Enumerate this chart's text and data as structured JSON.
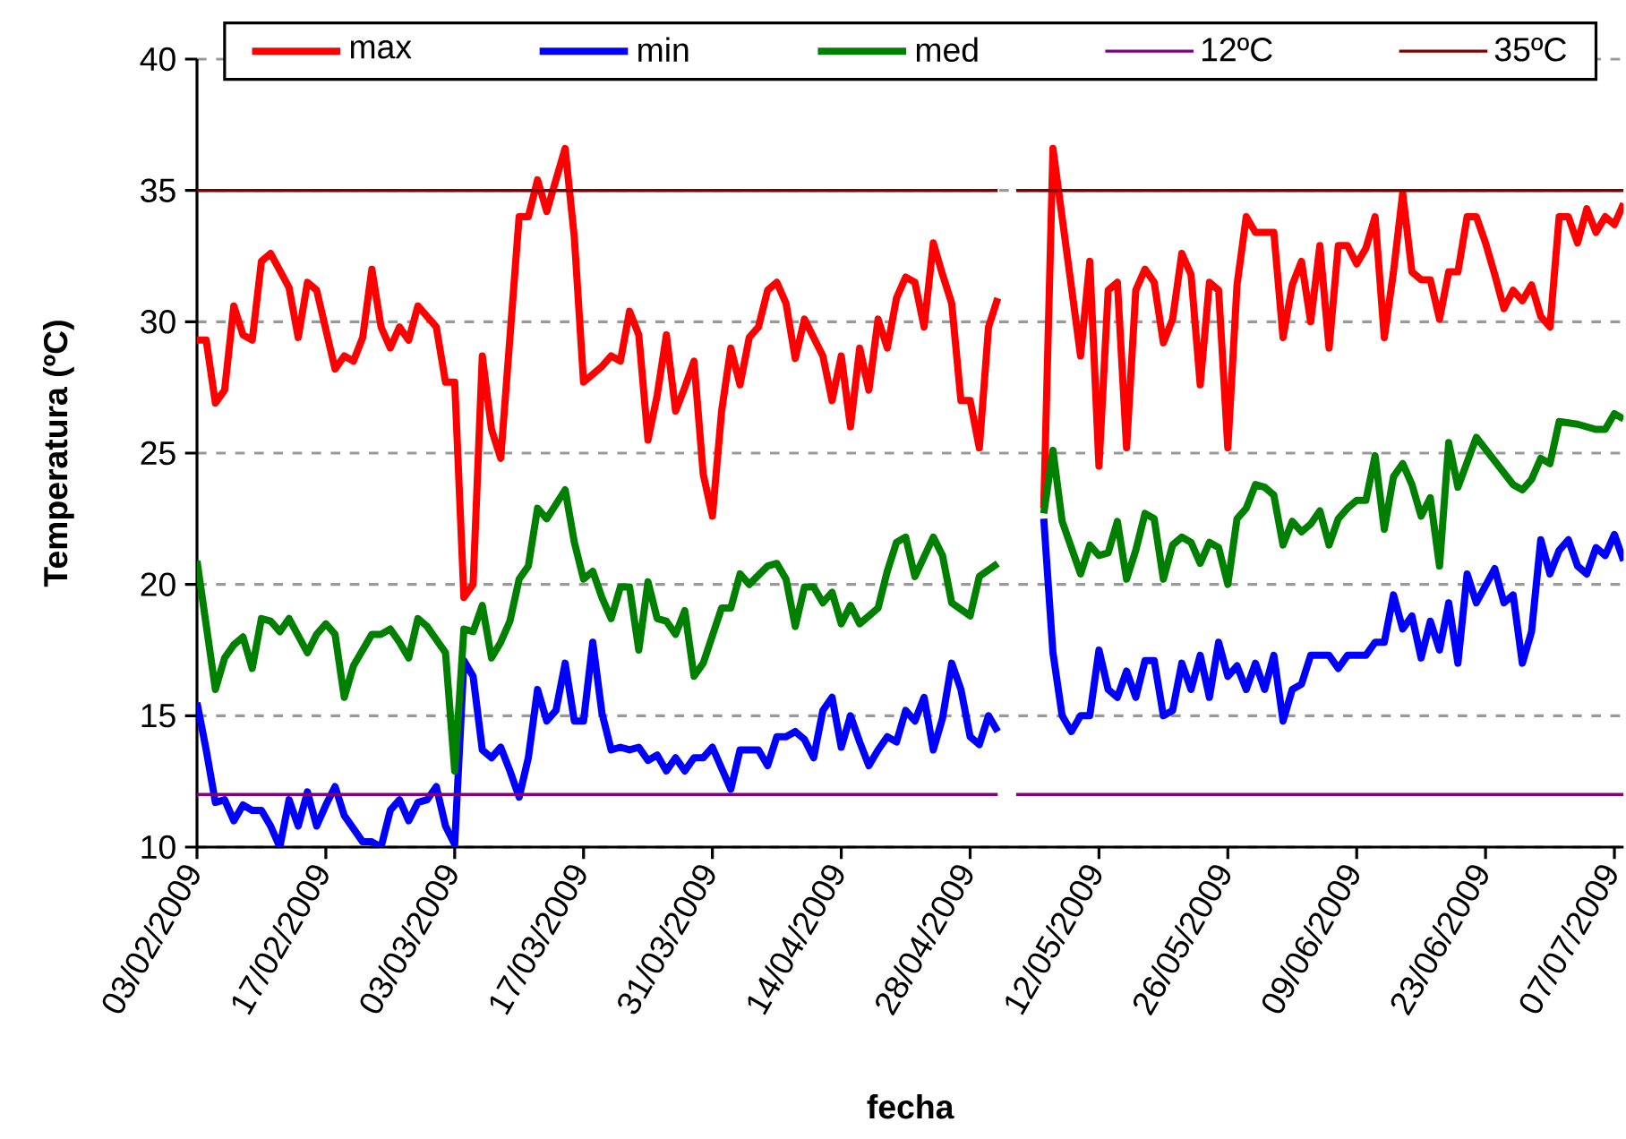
{
  "chart_data": {
    "type": "line",
    "xlabel": "fecha",
    "ylabel": "Temperatura (ºC)",
    "xlim": [
      "2009-02-03",
      "2009-07-08"
    ],
    "xticks": [
      {
        "value": "2009-02-03",
        "label": "03/02/2009"
      },
      {
        "value": "2009-02-17",
        "label": "17/02/2009"
      },
      {
        "value": "2009-03-03",
        "label": "03/03/2009"
      },
      {
        "value": "2009-03-17",
        "label": "17/03/2009"
      },
      {
        "value": "2009-03-31",
        "label": "31/03/2009"
      },
      {
        "value": "2009-04-14",
        "label": "14/04/2009"
      },
      {
        "value": "2009-04-28",
        "label": "28/04/2009"
      },
      {
        "value": "2009-05-12",
        "label": "12/05/2009"
      },
      {
        "value": "2009-05-26",
        "label": "26/05/2009"
      },
      {
        "value": "2009-06-09",
        "label": "09/06/2009"
      },
      {
        "value": "2009-06-23",
        "label": "23/06/2009"
      },
      {
        "value": "2009-07-07",
        "label": "07/07/2009"
      }
    ],
    "ylim": [
      10,
      40
    ],
    "yticks": [
      10,
      15,
      20,
      25,
      30,
      35,
      40
    ],
    "grid": "y",
    "legend": "top",
    "marker": "none",
    "line_style": "solid",
    "series": [
      {
        "name": "max",
        "color": "#ff0000",
        "x": [
          "2009-02-03",
          "2009-02-04",
          "2009-02-05",
          "2009-02-06",
          "2009-02-07",
          "2009-02-08",
          "2009-02-09",
          "2009-02-10",
          "2009-02-11",
          "2009-02-13",
          "2009-02-14",
          "2009-02-15",
          "2009-02-16",
          "2009-02-18",
          "2009-02-19",
          "2009-02-20",
          "2009-02-21",
          "2009-02-22",
          "2009-02-23",
          "2009-02-24",
          "2009-02-25",
          "2009-02-26",
          "2009-02-27",
          "2009-02-28",
          "2009-03-01",
          "2009-03-02",
          "2009-03-03",
          "2009-03-04",
          "2009-03-05",
          "2009-03-06",
          "2009-03-07",
          "2009-03-08",
          "2009-03-10",
          "2009-03-11",
          "2009-03-12",
          "2009-03-13",
          "2009-03-14",
          "2009-03-15",
          "2009-03-16",
          "2009-03-17",
          "2009-03-19",
          "2009-03-20",
          "2009-03-21",
          "2009-03-22",
          "2009-03-23",
          "2009-03-24",
          "2009-03-25",
          "2009-03-26",
          "2009-03-27",
          "2009-03-28",
          "2009-03-29",
          "2009-03-30",
          "2009-03-31",
          "2009-04-01",
          "2009-04-02",
          "2009-04-03",
          "2009-04-04",
          "2009-04-05",
          "2009-04-06",
          "2009-04-07",
          "2009-04-08",
          "2009-04-09",
          "2009-04-10",
          "2009-04-11",
          "2009-04-12",
          "2009-04-13",
          "2009-04-14",
          "2009-04-15",
          "2009-04-16",
          "2009-04-17",
          "2009-04-18",
          "2009-04-19",
          "2009-04-20",
          "2009-04-21",
          "2009-04-22",
          "2009-04-23",
          "2009-04-24",
          "2009-04-25",
          "2009-04-26",
          "2009-04-27",
          "2009-04-28",
          "2009-04-29",
          "2009-04-30",
          "2009-05-01",
          "2009-05-04",
          "2009-05-06",
          "2009-05-07",
          "2009-05-10",
          "2009-05-11",
          "2009-05-12",
          "2009-05-13",
          "2009-05-14",
          "2009-05-15",
          "2009-05-16",
          "2009-05-17",
          "2009-05-18",
          "2009-05-19",
          "2009-05-20",
          "2009-05-21",
          "2009-05-22",
          "2009-05-23",
          "2009-05-24",
          "2009-05-25",
          "2009-05-26",
          "2009-05-27",
          "2009-05-28",
          "2009-05-29",
          "2009-05-31",
          "2009-06-01",
          "2009-06-02",
          "2009-06-03",
          "2009-06-04",
          "2009-06-05",
          "2009-06-06",
          "2009-06-07",
          "2009-06-08",
          "2009-06-09",
          "2009-06-10",
          "2009-06-11",
          "2009-06-12",
          "2009-06-13",
          "2009-06-14",
          "2009-06-15",
          "2009-06-16",
          "2009-06-17",
          "2009-06-18",
          "2009-06-19",
          "2009-06-20",
          "2009-06-21",
          "2009-06-22",
          "2009-06-23",
          "2009-06-24",
          "2009-06-25",
          "2009-06-26",
          "2009-06-27",
          "2009-06-28",
          "2009-06-29",
          "2009-06-30",
          "2009-07-01",
          "2009-07-02",
          "2009-07-03",
          "2009-07-04",
          "2009-07-05",
          "2009-07-06",
          "2009-07-07",
          "2009-07-08"
        ],
        "values": [
          29.3,
          29.3,
          26.9,
          27.4,
          30.6,
          29.5,
          29.3,
          32.3,
          32.6,
          31.3,
          29.4,
          31.5,
          31.2,
          28.2,
          28.7,
          28.5,
          29.4,
          32.0,
          29.8,
          29.0,
          29.8,
          29.3,
          30.6,
          30.2,
          29.8,
          27.7,
          27.7,
          19.5,
          20.0,
          28.7,
          25.9,
          24.8,
          34.0,
          34.0,
          35.4,
          34.2,
          35.4,
          36.6,
          33.2,
          27.7,
          28.3,
          28.7,
          28.5,
          30.4,
          29.5,
          25.5,
          27.2,
          29.5,
          26.6,
          27.5,
          28.5,
          24.2,
          22.6,
          26.6,
          29.0,
          27.6,
          29.4,
          29.8,
          31.2,
          31.5,
          30.7,
          28.6,
          30.1,
          29.4,
          28.7,
          27.0,
          28.7,
          26.0,
          29.0,
          27.4,
          30.1,
          29.0,
          30.9,
          31.7,
          31.5,
          29.8,
          33.0,
          31.8,
          30.7,
          27.0,
          27.0,
          25.2,
          29.8,
          30.9,
          null,
          22.9,
          36.6,
          28.7,
          32.3,
          24.5,
          31.2,
          31.5,
          25.2,
          31.2,
          32.0,
          31.5,
          29.2,
          30.1,
          32.6,
          31.8,
          27.6,
          31.5,
          31.2,
          25.2,
          31.4,
          34.0,
          33.4,
          33.4,
          29.4,
          31.4,
          32.3,
          30.0,
          32.9,
          29.0,
          32.9,
          32.9,
          32.2,
          32.8,
          34.0,
          29.4,
          31.9,
          34.9,
          31.9,
          31.6,
          31.6,
          30.1,
          31.9,
          31.9,
          34.0,
          34.0,
          33.0,
          31.8,
          30.5,
          31.2,
          30.8,
          31.4,
          30.2,
          29.8,
          34.0,
          34.0,
          33.0,
          34.3,
          33.4,
          34.0,
          33.7,
          34.5
        ]
      },
      {
        "name": "min",
        "color": "#0000ff",
        "x": [
          "2009-02-03",
          "2009-02-04",
          "2009-02-05",
          "2009-02-06",
          "2009-02-07",
          "2009-02-08",
          "2009-02-09",
          "2009-02-10",
          "2009-02-11",
          "2009-02-12",
          "2009-02-13",
          "2009-02-14",
          "2009-02-15",
          "2009-02-16",
          "2009-02-17",
          "2009-02-18",
          "2009-02-19",
          "2009-02-20",
          "2009-02-21",
          "2009-02-22",
          "2009-02-23",
          "2009-02-24",
          "2009-02-25",
          "2009-02-26",
          "2009-02-27",
          "2009-02-28",
          "2009-03-01",
          "2009-03-02",
          "2009-03-03",
          "2009-03-04",
          "2009-03-05",
          "2009-03-06",
          "2009-03-07",
          "2009-03-08",
          "2009-03-09",
          "2009-03-10",
          "2009-03-11",
          "2009-03-12",
          "2009-03-13",
          "2009-03-14",
          "2009-03-15",
          "2009-03-16",
          "2009-03-17",
          "2009-03-18",
          "2009-03-19",
          "2009-03-20",
          "2009-03-21",
          "2009-03-22",
          "2009-03-23",
          "2009-03-24",
          "2009-03-25",
          "2009-03-26",
          "2009-03-27",
          "2009-03-28",
          "2009-03-29",
          "2009-03-30",
          "2009-03-31",
          "2009-04-01",
          "2009-04-02",
          "2009-04-03",
          "2009-04-04",
          "2009-04-05",
          "2009-04-06",
          "2009-04-07",
          "2009-04-08",
          "2009-04-09",
          "2009-04-10",
          "2009-04-11",
          "2009-04-12",
          "2009-04-13",
          "2009-04-14",
          "2009-04-15",
          "2009-04-16",
          "2009-04-17",
          "2009-04-18",
          "2009-04-19",
          "2009-04-20",
          "2009-04-21",
          "2009-04-22",
          "2009-04-23",
          "2009-04-24",
          "2009-04-25",
          "2009-04-26",
          "2009-04-27",
          "2009-04-28",
          "2009-04-29",
          "2009-04-30",
          "2009-05-01",
          "2009-05-04",
          "2009-05-06",
          "2009-05-07",
          "2009-05-08",
          "2009-05-09",
          "2009-05-10",
          "2009-05-11",
          "2009-05-12",
          "2009-05-13",
          "2009-05-14",
          "2009-05-15",
          "2009-05-16",
          "2009-05-17",
          "2009-05-18",
          "2009-05-19",
          "2009-05-20",
          "2009-05-21",
          "2009-05-22",
          "2009-05-23",
          "2009-05-24",
          "2009-05-25",
          "2009-05-26",
          "2009-05-27",
          "2009-05-28",
          "2009-05-29",
          "2009-05-30",
          "2009-05-31",
          "2009-06-01",
          "2009-06-02",
          "2009-06-03",
          "2009-06-04",
          "2009-06-06",
          "2009-06-07",
          "2009-06-08",
          "2009-06-10",
          "2009-06-11",
          "2009-06-12",
          "2009-06-13",
          "2009-06-14",
          "2009-06-15",
          "2009-06-16",
          "2009-06-17",
          "2009-06-18",
          "2009-06-19",
          "2009-06-20",
          "2009-06-21",
          "2009-06-22",
          "2009-06-24",
          "2009-06-25",
          "2009-06-26",
          "2009-06-27",
          "2009-06-28",
          "2009-06-29",
          "2009-06-30",
          "2009-07-01",
          "2009-07-02",
          "2009-07-03",
          "2009-07-04",
          "2009-07-05",
          "2009-07-06",
          "2009-07-07",
          "2009-07-08"
        ],
        "values": [
          15.5,
          13.7,
          11.7,
          11.8,
          11.0,
          11.6,
          11.4,
          11.4,
          10.8,
          10.0,
          11.8,
          10.8,
          12.1,
          10.8,
          11.6,
          12.3,
          11.2,
          10.7,
          10.2,
          10.2,
          10.0,
          11.4,
          11.8,
          11.0,
          11.7,
          11.8,
          12.3,
          10.8,
          10.1,
          17.1,
          16.5,
          13.7,
          13.4,
          13.8,
          12.9,
          11.9,
          13.4,
          16.0,
          14.8,
          15.2,
          17.0,
          14.8,
          14.8,
          17.8,
          15.1,
          13.7,
          13.8,
          13.7,
          13.8,
          13.3,
          13.5,
          12.9,
          13.4,
          12.9,
          13.4,
          13.4,
          13.8,
          13.0,
          12.2,
          13.7,
          13.7,
          13.7,
          13.1,
          14.2,
          14.2,
          14.4,
          14.1,
          13.4,
          15.2,
          15.7,
          13.8,
          15.0,
          14.0,
          13.1,
          13.7,
          14.2,
          14.0,
          15.2,
          14.8,
          15.7,
          13.7,
          14.9,
          17.0,
          16.0,
          14.2,
          13.9,
          15.0,
          14.4,
          null,
          22.5,
          17.4,
          15.0,
          14.4,
          15.0,
          15.0,
          17.5,
          16.0,
          15.7,
          16.7,
          15.7,
          17.1,
          17.1,
          15.0,
          15.2,
          17.0,
          16.0,
          17.3,
          15.7,
          17.8,
          16.5,
          16.9,
          16.0,
          17.0,
          16.0,
          17.3,
          14.8,
          16.0,
          16.2,
          17.3,
          17.3,
          16.8,
          17.3,
          17.3,
          17.8,
          17.8,
          19.6,
          18.3,
          18.8,
          17.2,
          18.6,
          17.5,
          19.3,
          17.0,
          20.4,
          19.3,
          20.6,
          19.3,
          19.6,
          17.0,
          18.2,
          21.7,
          20.4,
          21.3,
          21.7,
          20.7,
          20.4,
          21.4,
          21.1,
          21.9,
          20.9
        ]
      },
      {
        "name": "med",
        "color": "#008000",
        "x": [
          "2009-02-03",
          "2009-02-05",
          "2009-02-06",
          "2009-02-07",
          "2009-02-08",
          "2009-02-09",
          "2009-02-10",
          "2009-02-11",
          "2009-02-12",
          "2009-02-13",
          "2009-02-15",
          "2009-02-16",
          "2009-02-17",
          "2009-02-18",
          "2009-02-19",
          "2009-02-20",
          "2009-02-21",
          "2009-02-22",
          "2009-02-23",
          "2009-02-24",
          "2009-02-25",
          "2009-02-26",
          "2009-02-27",
          "2009-02-28",
          "2009-03-01",
          "2009-03-02",
          "2009-03-03",
          "2009-03-04",
          "2009-03-05",
          "2009-03-06",
          "2009-03-07",
          "2009-03-08",
          "2009-03-09",
          "2009-03-10",
          "2009-03-11",
          "2009-03-12",
          "2009-03-13",
          "2009-03-15",
          "2009-03-16",
          "2009-03-17",
          "2009-03-18",
          "2009-03-19",
          "2009-03-20",
          "2009-03-21",
          "2009-03-22",
          "2009-03-23",
          "2009-03-24",
          "2009-03-25",
          "2009-03-26",
          "2009-03-27",
          "2009-03-28",
          "2009-03-29",
          "2009-03-30",
          "2009-04-01",
          "2009-04-02",
          "2009-04-03",
          "2009-04-04",
          "2009-04-06",
          "2009-04-07",
          "2009-04-08",
          "2009-04-09",
          "2009-04-10",
          "2009-04-11",
          "2009-04-12",
          "2009-04-13",
          "2009-04-14",
          "2009-04-15",
          "2009-04-16",
          "2009-04-17",
          "2009-04-18",
          "2009-04-19",
          "2009-04-20",
          "2009-04-21",
          "2009-04-22",
          "2009-04-24",
          "2009-04-25",
          "2009-04-26",
          "2009-04-28",
          "2009-04-29",
          "2009-05-01",
          "2009-05-04",
          "2009-05-06",
          "2009-05-07",
          "2009-05-08",
          "2009-05-10",
          "2009-05-11",
          "2009-05-12",
          "2009-05-13",
          "2009-05-14",
          "2009-05-15",
          "2009-05-16",
          "2009-05-17",
          "2009-05-18",
          "2009-05-19",
          "2009-05-20",
          "2009-05-21",
          "2009-05-22",
          "2009-05-23",
          "2009-05-24",
          "2009-05-25",
          "2009-05-26",
          "2009-05-27",
          "2009-05-28",
          "2009-05-29",
          "2009-05-30",
          "2009-05-31",
          "2009-06-01",
          "2009-06-02",
          "2009-06-03",
          "2009-06-04",
          "2009-06-05",
          "2009-06-06",
          "2009-06-07",
          "2009-06-08",
          "2009-06-09",
          "2009-06-10",
          "2009-06-11",
          "2009-06-12",
          "2009-06-13",
          "2009-06-14",
          "2009-06-15",
          "2009-06-16",
          "2009-06-17",
          "2009-06-18",
          "2009-06-19",
          "2009-06-20",
          "2009-06-22",
          "2009-06-26",
          "2009-06-27",
          "2009-06-28",
          "2009-06-29",
          "2009-06-30",
          "2009-07-01",
          "2009-07-03",
          "2009-07-05",
          "2009-07-06",
          "2009-07-07",
          "2009-07-08"
        ],
        "values": [
          20.9,
          16.0,
          17.2,
          17.7,
          18.0,
          16.8,
          18.7,
          18.6,
          18.2,
          18.7,
          17.4,
          18.1,
          18.5,
          18.1,
          15.7,
          16.9,
          17.5,
          18.1,
          18.1,
          18.3,
          17.8,
          17.2,
          18.7,
          18.4,
          17.9,
          17.4,
          12.9,
          18.3,
          18.2,
          19.2,
          17.2,
          17.8,
          18.6,
          20.2,
          20.7,
          22.9,
          22.5,
          23.6,
          21.6,
          20.2,
          20.5,
          19.5,
          18.7,
          19.9,
          19.9,
          17.5,
          20.1,
          18.7,
          18.6,
          18.1,
          19.0,
          16.5,
          17.0,
          19.1,
          19.1,
          20.4,
          20.0,
          20.7,
          20.8,
          20.2,
          18.4,
          19.9,
          19.9,
          19.3,
          19.7,
          18.5,
          19.2,
          18.5,
          18.8,
          19.1,
          20.5,
          21.6,
          21.8,
          20.3,
          21.8,
          21.1,
          19.3,
          18.8,
          20.3,
          20.8,
          null,
          22.7,
          25.1,
          22.4,
          20.4,
          21.5,
          21.1,
          21.2,
          22.4,
          20.2,
          21.3,
          22.7,
          22.5,
          20.2,
          21.5,
          21.8,
          21.6,
          20.8,
          21.6,
          21.4,
          20.0,
          22.5,
          22.9,
          23.8,
          23.7,
          23.4,
          21.5,
          22.4,
          22.0,
          22.3,
          22.8,
          21.5,
          22.5,
          22.9,
          23.2,
          23.2,
          24.9,
          22.1,
          24.1,
          24.6,
          23.8,
          22.6,
          23.3,
          20.7,
          25.4,
          23.7,
          25.6,
          23.8,
          23.6,
          24.0,
          24.8,
          24.6,
          26.2,
          26.1,
          25.9,
          25.9,
          26.5,
          26.3
        ]
      },
      {
        "name": "12ºC",
        "color": "#800080",
        "x": [
          "2009-02-03",
          "2009-05-01",
          "2009-05-02",
          "2009-05-03",
          "2009-07-08"
        ],
        "values": [
          12,
          12,
          null,
          12,
          12
        ]
      },
      {
        "name": "35ºC",
        "color": "#800000",
        "x": [
          "2009-02-03",
          "2009-05-01",
          "2009-05-02",
          "2009-05-03",
          "2009-07-08"
        ],
        "values": [
          35,
          35,
          null,
          35,
          35
        ]
      }
    ]
  }
}
